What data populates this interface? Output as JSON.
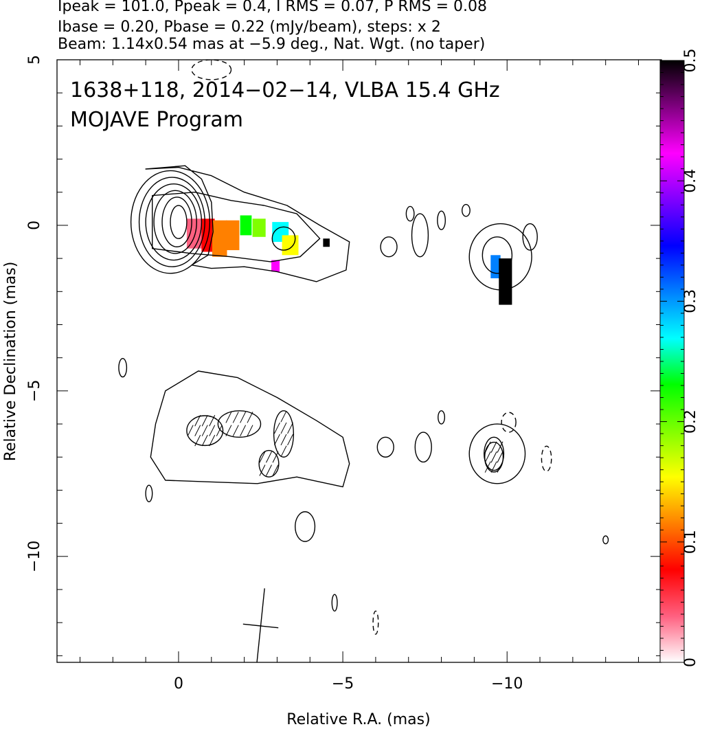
{
  "header": {
    "line1": "Ipeak = 101.0, Ppeak = 0.4, I RMS = 0.07, P RMS = 0.08",
    "line2": "Ibase = 0.20, Pbase = 0.22 (mJy/beam), steps: x 2",
    "line3": "Beam: 1.14x0.54 mas at −5.9 deg., Nat. Wgt. (no taper)"
  },
  "overlay": {
    "source_line": "1638+118, 2014−02−14, VLBA 15.4 GHz",
    "program_line": "MOJAVE Program"
  },
  "chart_data": {
    "type": "heatmap",
    "xlabel": "Relative R.A. (mas)",
    "ylabel": "Relative Declination (mas)",
    "xlim": [
      3.7,
      -14.7
    ],
    "ylim": [
      -13.2,
      5.0
    ],
    "x_ticks": [
      0,
      -5,
      -10
    ],
    "x_tick_labels": [
      "0",
      "−5",
      "−10"
    ],
    "y_ticks": [
      5,
      0,
      -5,
      -10
    ],
    "y_tick_labels": [
      "5",
      "0",
      "−5",
      "−10"
    ],
    "colorbar": {
      "range": [
        0,
        0.5
      ],
      "ticks": [
        0,
        0.1,
        0.2,
        0.3,
        0.4,
        0.5
      ],
      "tick_labels": [
        "0",
        "0.1",
        "0.2",
        "0.3",
        "0.4",
        "0.5"
      ],
      "colors": [
        "#ffffff",
        "#ff6080",
        "#ff0000",
        "#ff8000",
        "#ffff00",
        "#80ff00",
        "#00ff00",
        "#00ffff",
        "#0080ff",
        "#0000ff",
        "#8000ff",
        "#ff00ff",
        "#800080",
        "#000000"
      ]
    },
    "upper_panel": {
      "core_contours": [
        {
          "cx": 0.0,
          "cy": 0.1,
          "rx": 0.25,
          "ry": 0.5
        },
        {
          "cx": 0.05,
          "cy": 0.1,
          "rx": 0.45,
          "ry": 0.75
        },
        {
          "cx": 0.1,
          "cy": 0.1,
          "rx": 0.65,
          "ry": 0.95
        },
        {
          "cx": 0.15,
          "cy": 0.1,
          "rx": 0.85,
          "ry": 1.15
        },
        {
          "cx": 0.2,
          "cy": 0.1,
          "rx": 1.0,
          "ry": 1.35
        },
        {
          "cx": 0.25,
          "cy": 0.1,
          "rx": 1.2,
          "ry": 1.55
        }
      ],
      "jet_contour": [
        [
          1.0,
          1.7
        ],
        [
          -0.2,
          1.8
        ],
        [
          -0.7,
          1.4
        ],
        [
          -1.0,
          0.7
        ],
        [
          -1.05,
          -0.2
        ],
        [
          -0.9,
          -0.9
        ],
        [
          -0.4,
          -1.2
        ],
        [
          -1.0,
          -1.3
        ],
        [
          -2.0,
          -1.25
        ],
        [
          -3.0,
          -1.4
        ],
        [
          -4.2,
          -1.7
        ],
        [
          -5.1,
          -1.35
        ],
        [
          -5.2,
          -0.5
        ],
        [
          -4.3,
          0.0
        ],
        [
          -3.3,
          0.6
        ],
        [
          -2.0,
          1.0
        ],
        [
          -1.0,
          1.5
        ],
        [
          0.0,
          1.75
        ]
      ],
      "jet_inner_contour": [
        [
          0.8,
          0.9
        ],
        [
          -0.5,
          1.0
        ],
        [
          -1.6,
          0.75
        ],
        [
          -2.6,
          0.6
        ],
        [
          -3.6,
          0.35
        ],
        [
          -4.3,
          -0.4
        ],
        [
          -3.7,
          -0.95
        ],
        [
          -2.8,
          -1.1
        ],
        [
          -1.6,
          -0.95
        ],
        [
          -0.4,
          -0.85
        ],
        [
          0.8,
          -0.7
        ]
      ],
      "knot_contours": [
        {
          "cx": -3.2,
          "cy": -0.4,
          "rx": 0.35,
          "ry": 0.35
        },
        {
          "cx": -9.8,
          "cy": -0.95,
          "rx": 0.95,
          "ry": 1.0
        },
        {
          "cx": -9.7,
          "cy": -0.9,
          "rx": 0.45,
          "ry": 0.55
        },
        {
          "cx": -6.4,
          "cy": -0.65,
          "rx": 0.25,
          "ry": 0.3
        },
        {
          "cx": -7.35,
          "cy": -0.3,
          "rx": 0.25,
          "ry": 0.65
        },
        {
          "cx": -8.0,
          "cy": 0.15,
          "rx": 0.12,
          "ry": 0.28
        },
        {
          "cx": -7.05,
          "cy": 0.35,
          "rx": 0.12,
          "ry": 0.22
        },
        {
          "cx": -10.7,
          "cy": -0.35,
          "rx": 0.22,
          "ry": 0.4
        },
        {
          "cx": -8.75,
          "cy": 0.45,
          "rx": 0.12,
          "ry": 0.18
        }
      ],
      "polarization_pixels": [
        {
          "x": -0.5,
          "y": 0.2,
          "w": 0.5,
          "h": 0.9,
          "p": 0.05
        },
        {
          "x": -0.9,
          "y": 0.2,
          "w": 0.4,
          "h": 1.0,
          "p": 0.08
        },
        {
          "x": -1.25,
          "y": 0.15,
          "w": 0.45,
          "h": 1.1,
          "p": 0.11
        },
        {
          "x": -1.65,
          "y": 0.15,
          "w": 0.4,
          "h": 0.9,
          "p": 0.13
        },
        {
          "x": -2.05,
          "y": 0.3,
          "w": 0.35,
          "h": 0.6,
          "p": 0.22
        },
        {
          "x": -2.45,
          "y": 0.2,
          "w": 0.4,
          "h": 0.55,
          "p": 0.2
        },
        {
          "x": -3.1,
          "y": 0.1,
          "w": 0.5,
          "h": 0.6,
          "p": 0.28
        },
        {
          "x": -3.4,
          "y": -0.3,
          "w": 0.5,
          "h": 0.6,
          "p": 0.14
        },
        {
          "x": -2.95,
          "y": -1.05,
          "w": 0.25,
          "h": 0.35,
          "p": 0.42
        },
        {
          "x": -9.65,
          "y": -0.9,
          "w": 0.3,
          "h": 0.7,
          "p": 0.3
        },
        {
          "x": -9.95,
          "y": -1.0,
          "w": 0.4,
          "h": 1.4,
          "p": 0.5
        },
        {
          "x": -4.5,
          "y": -0.4,
          "w": 0.2,
          "h": 0.25,
          "p": 0.5
        }
      ]
    },
    "lower_panel": {
      "jet_contour": [
        [
          0.7,
          -6.0
        ],
        [
          0.4,
          -5.0
        ],
        [
          -0.6,
          -4.4
        ],
        [
          -1.8,
          -4.6
        ],
        [
          -3.0,
          -5.2
        ],
        [
          -4.2,
          -5.9
        ],
        [
          -5.0,
          -6.4
        ],
        [
          -5.2,
          -7.2
        ],
        [
          -5.0,
          -7.9
        ],
        [
          -3.6,
          -7.6
        ],
        [
          -2.4,
          -7.8
        ],
        [
          -1.0,
          -7.75
        ],
        [
          0.4,
          -7.7
        ],
        [
          0.85,
          -7.0
        ]
      ],
      "knot_contours": [
        {
          "cx": -9.7,
          "cy": -6.9,
          "rx": 0.85,
          "ry": 0.9
        },
        {
          "cx": -9.6,
          "cy": -6.9,
          "rx": 0.3,
          "ry": 0.5
        },
        {
          "cx": -6.3,
          "cy": -6.7,
          "rx": 0.25,
          "ry": 0.3
        },
        {
          "cx": -7.45,
          "cy": -6.7,
          "rx": 0.25,
          "ry": 0.45
        },
        {
          "cx": -8.0,
          "cy": -5.8,
          "rx": 0.1,
          "ry": 0.2
        },
        {
          "cx": -3.85,
          "cy": -9.1,
          "rx": 0.3,
          "ry": 0.45
        },
        {
          "cx": 1.7,
          "cy": -4.3,
          "rx": 0.12,
          "ry": 0.28
        },
        {
          "cx": 0.9,
          "cy": -8.1,
          "rx": 0.1,
          "ry": 0.25
        },
        {
          "cx": -4.75,
          "cy": -11.4,
          "rx": 0.08,
          "ry": 0.25
        },
        {
          "cx": -13.0,
          "cy": -9.5,
          "rx": 0.08,
          "ry": 0.12
        }
      ],
      "negative_contours": [
        {
          "cx": -10.05,
          "cy": -5.95,
          "rx": 0.22,
          "ry": 0.3
        },
        {
          "cx": -11.2,
          "cy": -7.05,
          "rx": 0.15,
          "ry": 0.38
        },
        {
          "cx": -6.0,
          "cy": -12.0,
          "rx": 0.08,
          "ry": 0.35
        },
        {
          "cx": -1.0,
          "cy": 4.7,
          "rx": 0.6,
          "ry": 0.3
        }
      ],
      "evpa_region_contours": [
        {
          "cx": -0.8,
          "cy": -6.2,
          "rx": 0.55,
          "ry": 0.45
        },
        {
          "cx": -1.85,
          "cy": -6.0,
          "rx": 0.65,
          "ry": 0.4
        },
        {
          "cx": -3.2,
          "cy": -6.3,
          "rx": 0.3,
          "ry": 0.7
        },
        {
          "cx": -2.75,
          "cy": -7.2,
          "rx": 0.3,
          "ry": 0.4
        },
        {
          "cx": -9.6,
          "cy": -7.0,
          "rx": 0.28,
          "ry": 0.45
        }
      ],
      "beam": {
        "x": -2.5,
        "y": -12.1,
        "major": 1.14,
        "minor": 0.54,
        "pa_deg": -5.9
      }
    }
  }
}
